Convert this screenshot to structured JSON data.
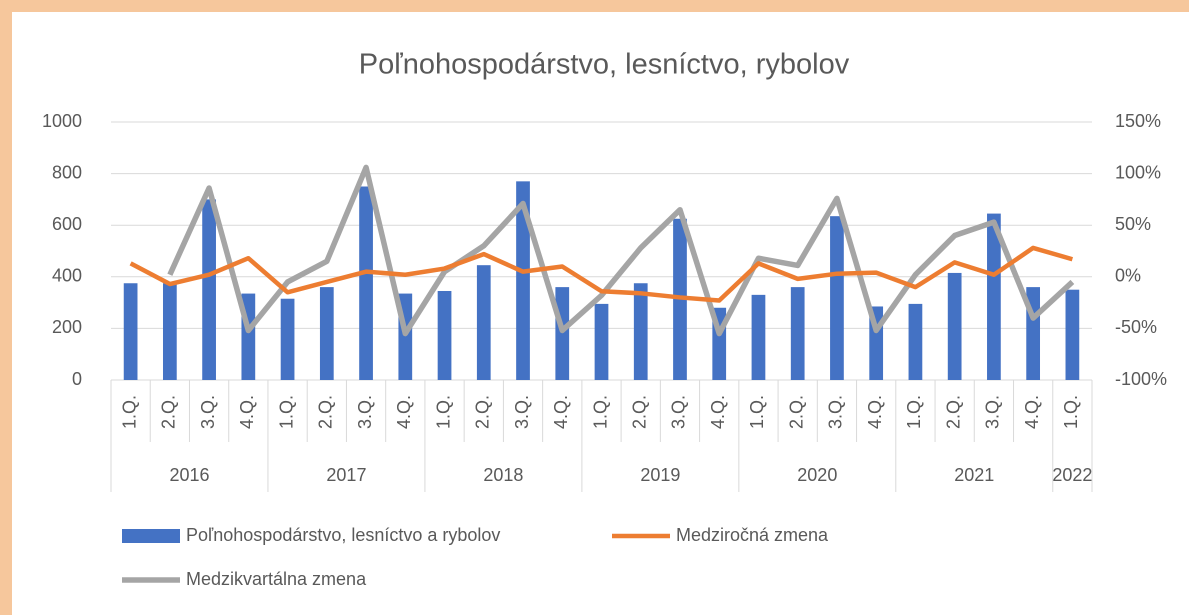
{
  "chart_data": {
    "type": "bar-line",
    "title": "Poľnohospodárstvo,  lesníctvo, rybolov",
    "categories": [
      "1.Q.",
      "2.Q.",
      "3.Q.",
      "4.Q.",
      "1.Q.",
      "2.Q.",
      "3.Q.",
      "4.Q.",
      "1.Q.",
      "2.Q.",
      "3.Q.",
      "4.Q.",
      "1.Q.",
      "2.Q.",
      "3.Q.",
      "4.Q.",
      "1.Q.",
      "2.Q.",
      "3.Q.",
      "4.Q.",
      "1.Q.",
      "2.Q.",
      "3.Q.",
      "4.Q.",
      "1.Q."
    ],
    "group_labels": [
      "2016",
      null,
      null,
      null,
      "2017",
      null,
      null,
      null,
      "2018",
      null,
      null,
      null,
      "2019",
      null,
      null,
      null,
      "2020",
      null,
      null,
      null,
      "2021",
      null,
      null,
      null,
      "2022"
    ],
    "series": [
      {
        "name": "Poľnohospodárstvo, lesníctvo a rybolov",
        "type": "bar",
        "color": "#4472c4",
        "values": [
          375,
          375,
          700,
          335,
          315,
          360,
          750,
          335,
          345,
          445,
          770,
          360,
          295,
          375,
          625,
          280,
          330,
          360,
          635,
          285,
          295,
          415,
          645,
          360,
          350
        ]
      },
      {
        "name": "Medziročná zmena",
        "type": "line",
        "axis": "y2",
        "color": "#ed7d31",
        "values": [
          13,
          -7,
          2,
          18,
          -15,
          -5,
          5,
          2,
          8,
          22,
          5,
          10,
          -14,
          -16,
          -20,
          -23,
          13,
          -2,
          3,
          4,
          -10,
          14,
          2,
          28,
          17
        ]
      },
      {
        "name": "Medzikvartálna zmena",
        "type": "line",
        "axis": "y2",
        "color": "#a5a5a5",
        "values": [
          null,
          2,
          86,
          -52,
          -5,
          15,
          106,
          -55,
          5,
          30,
          71,
          -52,
          -18,
          28,
          65,
          -55,
          18,
          11,
          76,
          -52,
          2,
          40,
          53,
          -40,
          -5
        ]
      }
    ],
    "ylim": [
      0,
      1000
    ],
    "yticks": [
      0,
      200,
      400,
      600,
      800,
      1000
    ],
    "y2lim": [
      -100,
      150
    ],
    "y2ticks": [
      {
        "value": -100,
        "label": "-100%"
      },
      {
        "value": -50,
        "label": "-50%"
      },
      {
        "value": 0,
        "label": "0%"
      },
      {
        "value": 50,
        "label": "50%"
      },
      {
        "value": 100,
        "label": "100%"
      },
      {
        "value": 150,
        "label": "150%"
      }
    ],
    "grid": true
  }
}
